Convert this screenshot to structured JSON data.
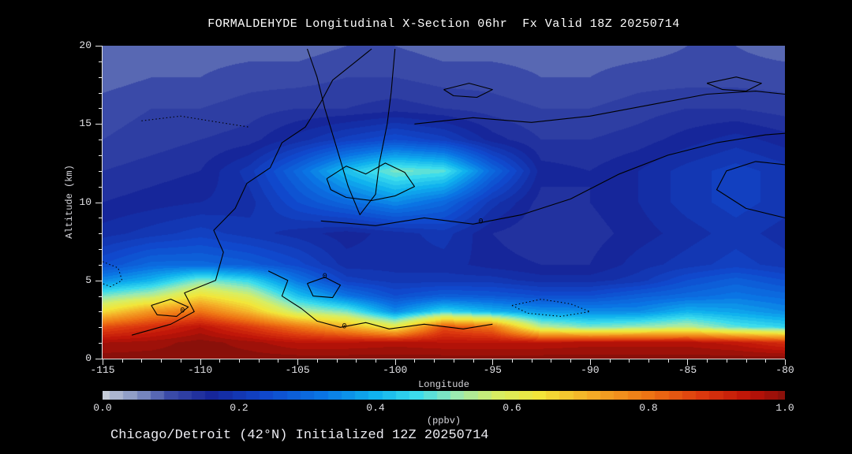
{
  "caption": "Chicago/Detroit (42°N) Initialized 12Z 20250714",
  "chart_data": {
    "type": "heatmap",
    "title": "FORMALDEHYDE Longitudinal X-Section 06hr  Fx Valid 18Z 20250714",
    "xlabel": "Longitude",
    "ylabel": "Altitude (km)",
    "xlim": [
      -115,
      -80
    ],
    "ylim": [
      0,
      20
    ],
    "x_ticks": [
      -115,
      -110,
      -105,
      -100,
      -95,
      -90,
      -85,
      -80
    ],
    "y_ticks": [
      0,
      5,
      10,
      15,
      20
    ],
    "background": "#000000",
    "text_color": "#e8e8e8",
    "colorbar": {
      "min": 0.0,
      "max": 1.0,
      "ticks": [
        "0.0",
        "0.2",
        "0.4",
        "0.6",
        "0.8",
        "1.0"
      ],
      "label": "(ppbv)"
    },
    "colormap": [
      [
        0.0,
        "#c6ccd8"
      ],
      [
        0.05,
        "#8494c4"
      ],
      [
        0.1,
        "#3a4aa8"
      ],
      [
        0.16,
        "#16269a"
      ],
      [
        0.24,
        "#1048cc"
      ],
      [
        0.32,
        "#0a74e4"
      ],
      [
        0.4,
        "#10b2ee"
      ],
      [
        0.46,
        "#3cdcec"
      ],
      [
        0.52,
        "#9ceab0"
      ],
      [
        0.58,
        "#d8ee62"
      ],
      [
        0.64,
        "#f2e63a"
      ],
      [
        0.72,
        "#f4aa26"
      ],
      [
        0.8,
        "#ee7414"
      ],
      [
        0.88,
        "#dc380e"
      ],
      [
        0.95,
        "#bc1208"
      ],
      [
        1.0,
        "#8a100a"
      ]
    ],
    "grid": {
      "lons": [
        -115,
        -112.5,
        -110,
        -107.5,
        -105,
        -102.5,
        -100,
        -97.5,
        -95,
        -92.5,
        -90,
        -87.5,
        -85,
        -82.5,
        -80
      ],
      "alts": [
        0,
        1,
        2,
        3,
        4,
        5,
        6,
        8,
        10,
        12,
        14,
        16,
        18,
        20
      ],
      "values": [
        [
          1.0,
          1.0,
          1.0,
          1.0,
          1.0,
          1.0,
          1.0,
          1.0,
          1.0,
          1.0,
          1.0,
          1.0,
          1.0,
          1.0,
          1.0
        ],
        [
          0.97,
          0.98,
          1.0,
          0.98,
          0.95,
          0.95,
          0.96,
          0.95,
          0.95,
          0.95,
          0.96,
          0.96,
          0.96,
          0.94,
          0.9
        ],
        [
          0.85,
          0.9,
          0.95,
          0.88,
          0.8,
          0.72,
          0.62,
          0.85,
          0.8,
          0.55,
          0.5,
          0.52,
          0.55,
          0.48,
          0.45
        ],
        [
          0.65,
          0.75,
          0.8,
          0.7,
          0.55,
          0.5,
          0.35,
          0.45,
          0.4,
          0.36,
          0.35,
          0.35,
          0.4,
          0.38,
          0.35
        ],
        [
          0.5,
          0.55,
          0.65,
          0.58,
          0.42,
          0.32,
          0.25,
          0.28,
          0.27,
          0.25,
          0.25,
          0.28,
          0.3,
          0.32,
          0.3
        ],
        [
          0.35,
          0.4,
          0.5,
          0.45,
          0.32,
          0.22,
          0.2,
          0.2,
          0.2,
          0.18,
          0.18,
          0.2,
          0.25,
          0.28,
          0.25
        ],
        [
          0.25,
          0.3,
          0.3,
          0.28,
          0.24,
          0.18,
          0.18,
          0.18,
          0.16,
          0.15,
          0.15,
          0.18,
          0.2,
          0.22,
          0.2
        ],
        [
          0.18,
          0.2,
          0.22,
          0.2,
          0.18,
          0.16,
          0.18,
          0.2,
          0.15,
          0.13,
          0.14,
          0.16,
          0.18,
          0.2,
          0.18
        ],
        [
          0.15,
          0.16,
          0.17,
          0.18,
          0.25,
          0.3,
          0.35,
          0.3,
          0.2,
          0.14,
          0.15,
          0.17,
          0.2,
          0.22,
          0.2
        ],
        [
          0.13,
          0.14,
          0.15,
          0.2,
          0.3,
          0.42,
          0.5,
          0.48,
          0.3,
          0.16,
          0.15,
          0.17,
          0.2,
          0.22,
          0.2
        ],
        [
          0.11,
          0.12,
          0.13,
          0.14,
          0.18,
          0.22,
          0.25,
          0.22,
          0.16,
          0.13,
          0.13,
          0.14,
          0.16,
          0.18,
          0.16
        ],
        [
          0.1,
          0.11,
          0.11,
          0.12,
          0.13,
          0.13,
          0.14,
          0.13,
          0.12,
          0.11,
          0.11,
          0.12,
          0.13,
          0.13,
          0.12
        ],
        [
          0.08,
          0.09,
          0.09,
          0.1,
          0.1,
          0.11,
          0.11,
          0.1,
          0.1,
          0.09,
          0.09,
          0.1,
          0.1,
          0.1,
          0.1
        ],
        [
          0.07,
          0.07,
          0.08,
          0.08,
          0.08,
          0.09,
          0.09,
          0.08,
          0.08,
          0.08,
          0.08,
          0.08,
          0.09,
          0.09,
          0.08
        ]
      ]
    },
    "contours": [
      {
        "style": "solid",
        "points": [
          [
            -113.5,
            1.5
          ],
          [
            -111.5,
            2.2
          ],
          [
            -110.3,
            3.0
          ],
          [
            -110.8,
            4.2
          ],
          [
            -109.2,
            5.0
          ],
          [
            -108.8,
            6.8
          ],
          [
            -109.3,
            8.2
          ],
          [
            -108.2,
            9.6
          ],
          [
            -107.6,
            11.2
          ],
          [
            -106.4,
            12.2
          ],
          [
            -105.8,
            13.8
          ],
          [
            -104.6,
            14.8
          ],
          [
            -103.8,
            16.4
          ],
          [
            -103.2,
            17.8
          ],
          [
            -102.0,
            19.0
          ],
          [
            -101.2,
            19.8
          ]
        ]
      },
      {
        "style": "solid",
        "points": [
          [
            -104.5,
            19.8
          ],
          [
            -104.0,
            18.0
          ],
          [
            -103.6,
            16.0
          ],
          [
            -103.0,
            13.5
          ],
          [
            -102.4,
            11.0
          ],
          [
            -101.8,
            9.2
          ],
          [
            -101.0,
            10.5
          ],
          [
            -100.8,
            12.5
          ],
          [
            -100.4,
            15.0
          ],
          [
            -100.2,
            17.0
          ],
          [
            -100.0,
            19.8
          ]
        ]
      },
      {
        "style": "solid",
        "points": [
          [
            -103.5,
            11.5
          ],
          [
            -102.5,
            12.3
          ],
          [
            -101.5,
            11.8
          ],
          [
            -100.5,
            12.5
          ],
          [
            -99.5,
            11.9
          ],
          [
            -99.0,
            11.0
          ],
          [
            -100.0,
            10.4
          ],
          [
            -101.2,
            10.1
          ],
          [
            -102.5,
            10.3
          ],
          [
            -103.3,
            10.8
          ],
          [
            -103.5,
            11.5
          ]
        ]
      },
      {
        "style": "solid",
        "points": [
          [
            -103.8,
            8.8
          ],
          [
            -101.0,
            8.5
          ],
          [
            -98.5,
            9.0
          ],
          [
            -96.0,
            8.6
          ],
          [
            -93.5,
            9.2
          ],
          [
            -91.0,
            10.2
          ],
          [
            -88.5,
            11.8
          ],
          [
            -86.0,
            13.0
          ],
          [
            -83.5,
            13.8
          ],
          [
            -81.0,
            14.3
          ],
          [
            -80.0,
            14.4
          ]
        ]
      },
      {
        "style": "solid",
        "points": [
          [
            -99.0,
            15.0
          ],
          [
            -96.0,
            15.4
          ],
          [
            -93.0,
            15.1
          ],
          [
            -90.0,
            15.5
          ],
          [
            -87.0,
            16.2
          ],
          [
            -84.0,
            16.9
          ],
          [
            -81.5,
            17.1
          ],
          [
            -80.0,
            16.9
          ]
        ]
      },
      {
        "style": "solid",
        "points": [
          [
            -80.0,
            9.0
          ],
          [
            -82.0,
            9.6
          ],
          [
            -83.5,
            10.8
          ],
          [
            -83.0,
            12.0
          ],
          [
            -81.5,
            12.6
          ],
          [
            -80.0,
            12.4
          ]
        ]
      },
      {
        "style": "solid",
        "points": [
          [
            -106.5,
            5.6
          ],
          [
            -105.5,
            5.0
          ],
          [
            -105.8,
            4.0
          ],
          [
            -104.8,
            3.2
          ],
          [
            -104.0,
            2.4
          ],
          [
            -102.8,
            2.0
          ],
          [
            -101.5,
            2.3
          ],
          [
            -100.3,
            1.9
          ],
          [
            -98.5,
            2.2
          ],
          [
            -96.5,
            1.9
          ],
          [
            -95.0,
            2.2
          ]
        ]
      },
      {
        "style": "solid",
        "points": [
          [
            -104.5,
            4.8
          ],
          [
            -103.6,
            5.2
          ],
          [
            -102.8,
            4.7
          ],
          [
            -103.2,
            3.9
          ],
          [
            -104.2,
            4.0
          ],
          [
            -104.5,
            4.8
          ]
        ]
      },
      {
        "style": "solid",
        "points": [
          [
            -112.5,
            3.4
          ],
          [
            -111.5,
            3.8
          ],
          [
            -110.6,
            3.3
          ],
          [
            -111.2,
            2.7
          ],
          [
            -112.2,
            2.8
          ],
          [
            -112.5,
            3.4
          ]
        ]
      },
      {
        "style": "solid",
        "points": [
          [
            -97.5,
            17.2
          ],
          [
            -96.2,
            17.6
          ],
          [
            -95.0,
            17.2
          ],
          [
            -95.8,
            16.7
          ],
          [
            -97.0,
            16.8
          ],
          [
            -97.5,
            17.2
          ]
        ]
      },
      {
        "style": "solid",
        "points": [
          [
            -84.0,
            17.6
          ],
          [
            -82.5,
            18.0
          ],
          [
            -81.2,
            17.6
          ],
          [
            -82.0,
            17.1
          ],
          [
            -83.2,
            17.2
          ],
          [
            -84.0,
            17.6
          ]
        ]
      },
      {
        "style": "dotted",
        "points": [
          [
            -115.0,
            6.2
          ],
          [
            -114.2,
            5.8
          ],
          [
            -114.0,
            5.0
          ],
          [
            -114.6,
            4.6
          ],
          [
            -115.0,
            4.8
          ]
        ]
      },
      {
        "style": "dotted",
        "points": [
          [
            -94.0,
            3.4
          ],
          [
            -92.5,
            3.8
          ],
          [
            -91.0,
            3.5
          ],
          [
            -90.0,
            3.0
          ],
          [
            -91.5,
            2.7
          ],
          [
            -93.2,
            2.9
          ],
          [
            -94.0,
            3.4
          ]
        ]
      },
      {
        "style": "dotted",
        "points": [
          [
            -113.0,
            15.2
          ],
          [
            -111.0,
            15.5
          ],
          [
            -109.0,
            15.1
          ],
          [
            -107.5,
            14.8
          ]
        ]
      }
    ],
    "contour_labels": [
      {
        "lon": -110.9,
        "alt": 2.95,
        "text": "0"
      },
      {
        "lon": -103.6,
        "alt": 5.15,
        "text": "0"
      },
      {
        "lon": -102.6,
        "alt": 1.95,
        "text": "0"
      },
      {
        "lon": -95.6,
        "alt": 8.65,
        "text": "0"
      }
    ]
  }
}
